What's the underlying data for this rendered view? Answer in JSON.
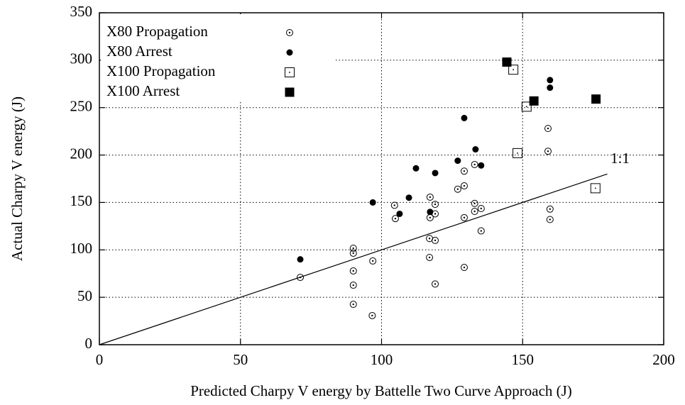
{
  "chart_data": {
    "type": "scatter",
    "xlabel": "Predicted Charpy V energy by Battelle Two Curve Approach (J)",
    "ylabel": "Actual Charpy V energy (J)",
    "xlim": [
      0,
      200
    ],
    "ylim": [
      0,
      350
    ],
    "xticks": [
      0,
      50,
      100,
      150,
      200
    ],
    "yticks": [
      0,
      50,
      100,
      150,
      200,
      250,
      300,
      350
    ],
    "grid": true,
    "legend": "upper left",
    "reference_line": {
      "label": "1:1",
      "x": [
        0,
        180
      ],
      "y": [
        0,
        180
      ]
    },
    "series": [
      {
        "name": "X80 Propagation",
        "marker": "circle-dot",
        "color": "#000000",
        "x": [
          71.2,
          90,
          90,
          90,
          90,
          90,
          96.9,
          96.7,
          104.6,
          104.9,
          117.2,
          117.2,
          117,
          117,
          119,
          119,
          119,
          119,
          127,
          129.3,
          129.3,
          129.3,
          129.3,
          133,
          133,
          133,
          135.3,
          135.3,
          159,
          159,
          159.7,
          159.7
        ],
        "values": [
          71,
          101.7,
          96.5,
          77.8,
          62.8,
          42.6,
          88.3,
          30.7,
          147,
          133,
          155.6,
          134,
          112,
          92,
          148,
          138,
          110,
          64,
          164,
          183,
          167.5,
          134,
          81.5,
          190,
          149,
          140.6,
          143.6,
          120,
          228,
          204,
          143,
          132
        ]
      },
      {
        "name": "X80 Arrest",
        "marker": "dot",
        "color": "#000000",
        "x": [
          71.2,
          96.9,
          106.4,
          109.7,
          112.2,
          117.2,
          119,
          127,
          129.3,
          133.3,
          135.3,
          159.7,
          159.7
        ],
        "values": [
          90,
          150,
          138,
          155,
          186,
          140,
          181,
          194,
          239,
          206,
          189,
          279,
          271
        ]
      },
      {
        "name": "X100 Propagation",
        "marker": "square-open",
        "color": "#000000",
        "x": [
          146.7,
          151.4,
          148.2,
          175.8
        ],
        "values": [
          290,
          251,
          202,
          165
        ]
      },
      {
        "name": "X100 Arrest",
        "marker": "square-filled",
        "color": "#000000",
        "x": [
          144.4,
          154,
          176
        ],
        "values": [
          298,
          257,
          259
        ]
      }
    ]
  }
}
